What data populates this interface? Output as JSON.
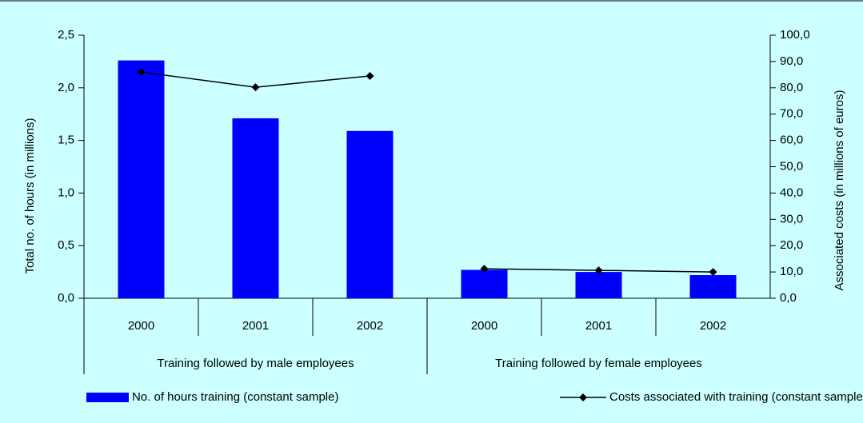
{
  "chart_data": {
    "type": "bar",
    "categories": [
      "2000",
      "2001",
      "2002",
      "2000",
      "2001",
      "2002"
    ],
    "groups": [
      "Training followed by male employees",
      "Training followed by female employees"
    ],
    "series": [
      {
        "name": "No. of hours training (constant sample)",
        "color": "#0000ff",
        "values": [
          2.26,
          1.71,
          1.59,
          0.27,
          0.25,
          0.22
        ]
      },
      {
        "name": "Costs associated with training  (constant sample)",
        "color": "#000000",
        "type": "line",
        "axis": "y2",
        "values": [
          86.0,
          80.2,
          84.5,
          11.2,
          10.6,
          10.0
        ]
      }
    ],
    "ylabel": "Total no. of hours (in millions)",
    "y2label": "Associated costs (in millions of euros)",
    "ylim": [
      0,
      2.5
    ],
    "yticks": [
      {
        "value": 0,
        "label": "0,0"
      },
      {
        "value": 0.5,
        "label": "0,5"
      },
      {
        "value": 1,
        "label": "1,0"
      },
      {
        "value": 1.5,
        "label": "1,5"
      },
      {
        "value": 2,
        "label": "2,0"
      },
      {
        "value": 2.5,
        "label": "2,5"
      }
    ],
    "y2lim": [
      0,
      100
    ],
    "y2ticks": [
      {
        "value": 0,
        "label": "0,0"
      },
      {
        "value": 10,
        "label": "10,0"
      },
      {
        "value": 20,
        "label": "20,0"
      },
      {
        "value": 30,
        "label": "30,0"
      },
      {
        "value": 40,
        "label": "40,0"
      },
      {
        "value": 50,
        "label": "50,0"
      },
      {
        "value": 60,
        "label": "60,0"
      },
      {
        "value": 70,
        "label": "70,0"
      },
      {
        "value": 80,
        "label": "80,0"
      },
      {
        "value": 90,
        "label": "90,0"
      },
      {
        "value": 100,
        "label": "100,0"
      }
    ],
    "grid": false
  }
}
